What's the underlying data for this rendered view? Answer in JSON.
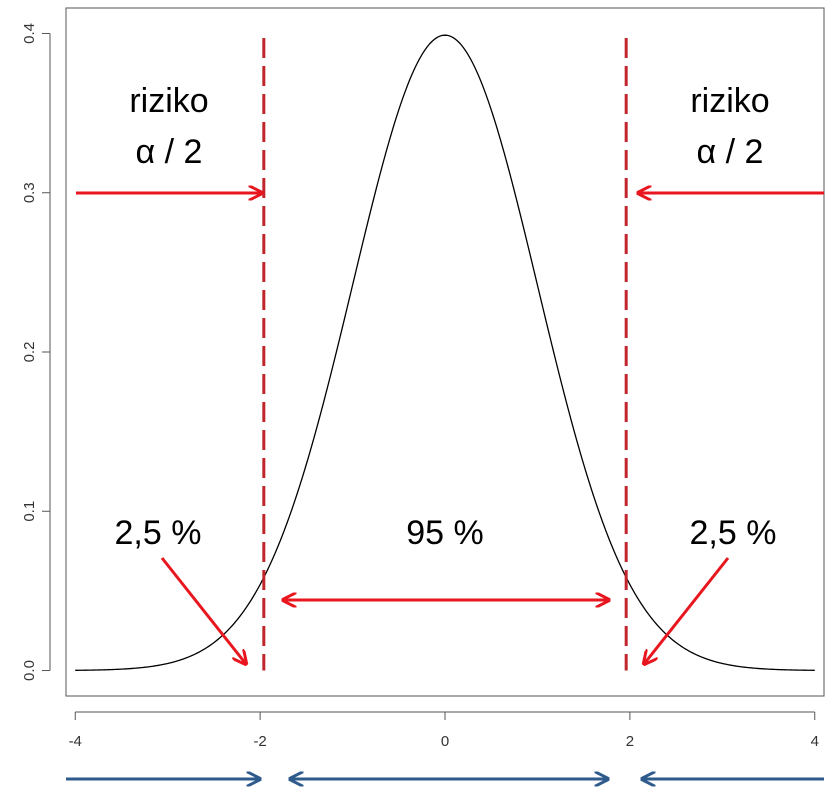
{
  "chart_data": {
    "type": "line",
    "title": "",
    "xlabel": "",
    "ylabel": "",
    "xlim": [
      -4.1,
      4.1
    ],
    "ylim": [
      -0.016,
      0.416
    ],
    "x_ticks": [
      -4,
      -2,
      0,
      2,
      4
    ],
    "x_tick_labels": [
      "-4",
      "-2",
      "0",
      "2",
      "4"
    ],
    "y_ticks": [
      0.0,
      0.1,
      0.2,
      0.3,
      0.4
    ],
    "y_tick_labels": [
      "0.0",
      "0.1",
      "0.2",
      "0.3",
      "0.4"
    ],
    "grid": false,
    "legend": "none",
    "series": [
      {
        "distribution": "standard normal density",
        "x": [
          -4,
          -3.5,
          -3,
          -2.5,
          -2,
          -1.5,
          -1,
          -0.5,
          0,
          0.5,
          1,
          1.5,
          2,
          2.5,
          3,
          3.5,
          4
        ],
        "y": [
          0.0001,
          0.0009,
          0.0044,
          0.0175,
          0.054,
          0.1295,
          0.242,
          0.3521,
          0.3989,
          0.3521,
          0.242,
          0.1295,
          0.054,
          0.0175,
          0.0044,
          0.0009,
          0.0001
        ]
      }
    ],
    "critical_lines": [
      -1.96,
      1.96
    ],
    "annotations": {
      "left_risk": {
        "line1": "riziko",
        "line2": "α / 2"
      },
      "right_risk": {
        "line1": "riziko",
        "line2": "α / 2"
      },
      "left_tail_percent": "2,5 %",
      "center_percent": "95 %",
      "right_tail_percent": "2,5 %"
    }
  },
  "colors": {
    "curve": "#000000",
    "critical_line": "#c0262c",
    "red_arrow": "#e8161e",
    "blue_arrow": "#2e5a8c",
    "axis": "#555555"
  }
}
